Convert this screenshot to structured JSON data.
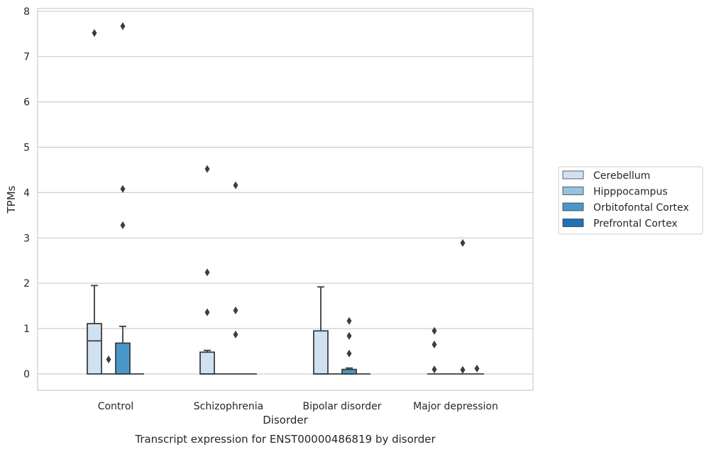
{
  "chart_data": {
    "type": "box",
    "title": "",
    "caption": "Transcript expression for ENST00000486819 by disorder",
    "xlabel": "Disorder",
    "ylabel": "TPMs",
    "ylim": [
      -0.35,
      8.05
    ],
    "yticks": [
      0,
      1,
      2,
      3,
      4,
      5,
      6,
      7,
      8
    ],
    "grid": "horizontal",
    "legend_position": "right",
    "categories": [
      "Control",
      "Schizophrenia",
      "Bipolar disorder",
      "Major depression"
    ],
    "series": [
      {
        "name": "Cerebellum",
        "color": "#d0e1f2",
        "boxes": [
          {
            "whisker_low": 0,
            "q1": 0,
            "median": 0.73,
            "q3": 1.11,
            "whisker_high": 1.95,
            "outliers": [
              7.52
            ]
          },
          {
            "whisker_low": 0,
            "q1": 0,
            "median": 0,
            "q3": 0.48,
            "whisker_high": 0.52,
            "outliers": [
              1.36,
              2.24,
              4.52
            ]
          },
          {
            "whisker_low": 0,
            "q1": 0,
            "median": 0,
            "q3": 0.95,
            "whisker_high": 1.92,
            "outliers": []
          },
          {
            "whisker_low": 0,
            "q1": 0,
            "median": 0,
            "q3": 0,
            "whisker_high": 0,
            "outliers": [
              0.1,
              0.65,
              0.95
            ]
          }
        ]
      },
      {
        "name": "Hipppocampus",
        "color": "#94c4df",
        "boxes": [
          {
            "whisker_low": 0,
            "q1": 0,
            "median": 0,
            "q3": 0,
            "whisker_high": 0,
            "outliers": [
              0.32
            ]
          },
          {
            "whisker_low": 0,
            "q1": 0,
            "median": 0,
            "q3": 0,
            "whisker_high": 0,
            "outliers": []
          },
          {
            "whisker_low": 0,
            "q1": 0,
            "median": 0,
            "q3": 0,
            "whisker_high": 0,
            "outliers": []
          },
          {
            "whisker_low": 0,
            "q1": 0,
            "median": 0,
            "q3": 0,
            "whisker_high": 0,
            "outliers": []
          }
        ]
      },
      {
        "name": "Orbitofontal Cortex",
        "color": "#4a98c9",
        "boxes": [
          {
            "whisker_low": 0,
            "q1": 0,
            "median": 0,
            "q3": 0.68,
            "whisker_high": 1.05,
            "outliers": [
              3.28,
              4.08,
              7.67
            ]
          },
          {
            "whisker_low": 0,
            "q1": 0,
            "median": 0,
            "q3": 0,
            "whisker_high": 0,
            "outliers": [
              0.87,
              1.4,
              4.16
            ]
          },
          {
            "whisker_low": 0,
            "q1": 0,
            "median": 0,
            "q3": 0.1,
            "whisker_high": 0.13,
            "outliers": [
              0.45,
              0.84,
              1.17
            ]
          },
          {
            "whisker_low": 0,
            "q1": 0,
            "median": 0,
            "q3": 0,
            "whisker_high": 0,
            "outliers": [
              0.09,
              2.89
            ]
          }
        ]
      },
      {
        "name": "Prefrontal Cortex",
        "color": "#2171b5",
        "boxes": [
          {
            "whisker_low": 0,
            "q1": 0,
            "median": 0,
            "q3": 0,
            "whisker_high": 0,
            "outliers": []
          },
          {
            "whisker_low": 0,
            "q1": 0,
            "median": 0,
            "q3": 0,
            "whisker_high": 0,
            "outliers": []
          },
          {
            "whisker_low": 0,
            "q1": 0,
            "median": 0,
            "q3": 0,
            "whisker_high": 0,
            "outliers": []
          },
          {
            "whisker_low": 0,
            "q1": 0,
            "median": 0,
            "q3": 0,
            "whisker_high": 0,
            "outliers": [
              0.12
            ]
          }
        ]
      }
    ]
  }
}
